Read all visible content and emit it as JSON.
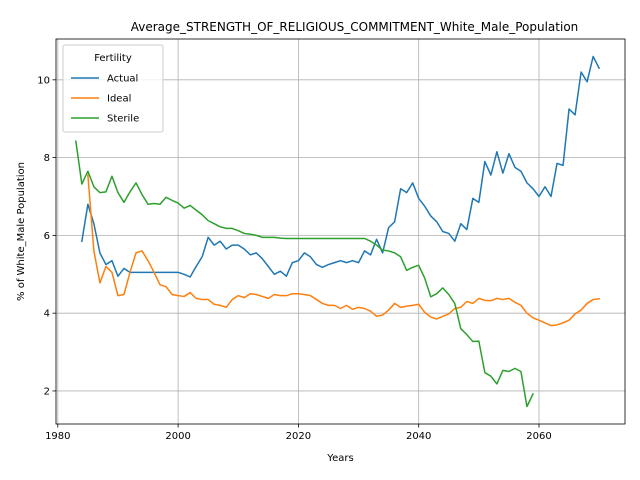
{
  "chart_data": {
    "type": "line",
    "title": "Average_STRENGTH_OF_RELIGIOUS_COMMITMENT_White_Male_Population",
    "xlabel": "Years",
    "ylabel": "% of White_Male Population",
    "xlim": [
      1979.7,
      2074.3
    ],
    "ylim": [
      1.15,
      11.05
    ],
    "xticks": [
      1980,
      2000,
      2020,
      2040,
      2060
    ],
    "yticks": [
      2,
      4,
      6,
      8,
      10
    ],
    "grid": true,
    "legend": {
      "title": "Fertility",
      "placement": "top-left"
    },
    "series": [
      {
        "name": "Actual",
        "color": "#1f77b4",
        "x": [
          1984,
          1985,
          1986,
          1987,
          1988,
          1989,
          1990,
          1991,
          1992,
          1993,
          1994,
          1995,
          1996,
          1997,
          1998,
          1999,
          2000,
          2001,
          2002,
          2003,
          2004,
          2005,
          2006,
          2007,
          2008,
          2009,
          2010,
          2011,
          2012,
          2013,
          2014,
          2015,
          2016,
          2017,
          2018,
          2019,
          2020,
          2021,
          2022,
          2023,
          2024,
          2025,
          2026,
          2027,
          2028,
          2029,
          2030,
          2031,
          2032,
          2033,
          2034,
          2035,
          2036,
          2037,
          2038,
          2039,
          2040,
          2041,
          2042,
          2043,
          2044,
          2045,
          2046,
          2047,
          2048,
          2049,
          2050,
          2051,
          2052,
          2053,
          2054,
          2055,
          2056,
          2057,
          2058,
          2059,
          2060,
          2061,
          2062,
          2063,
          2064,
          2065,
          2066,
          2067,
          2068,
          2069,
          2070
        ],
        "y": [
          5.85,
          6.8,
          6.3,
          5.55,
          5.25,
          5.35,
          4.95,
          5.15,
          5.05,
          5.05,
          5.05,
          5.05,
          5.05,
          5.05,
          5.05,
          5.05,
          5.05,
          5.0,
          4.93,
          5.2,
          5.45,
          5.95,
          5.75,
          5.85,
          5.65,
          5.75,
          5.75,
          5.65,
          5.5,
          5.55,
          5.4,
          5.2,
          5.0,
          5.08,
          4.95,
          5.3,
          5.35,
          5.55,
          5.45,
          5.25,
          5.18,
          5.25,
          5.3,
          5.35,
          5.3,
          5.35,
          5.3,
          5.6,
          5.5,
          5.9,
          5.55,
          6.2,
          6.35,
          7.2,
          7.1,
          7.35,
          6.95,
          6.75,
          6.5,
          6.35,
          6.1,
          6.05,
          5.85,
          6.3,
          6.15,
          6.95,
          6.85,
          7.9,
          7.55,
          8.15,
          7.6,
          8.1,
          7.75,
          7.65,
          7.35,
          7.2,
          7.0,
          7.25,
          7.0,
          7.85,
          7.8,
          9.25,
          9.1,
          10.2,
          9.95,
          10.6,
          10.3
        ]
      },
      {
        "name": "Ideal",
        "color": "#ff7f0e",
        "x": [
          1985,
          1986,
          1987,
          1988,
          1989,
          1990,
          1991,
          1992,
          1993,
          1994,
          1995,
          1996,
          1997,
          1998,
          1999,
          2000,
          2001,
          2002,
          2003,
          2004,
          2005,
          2006,
          2007,
          2008,
          2009,
          2010,
          2011,
          2012,
          2013,
          2014,
          2015,
          2016,
          2017,
          2018,
          2019,
          2020,
          2021,
          2022,
          2023,
          2024,
          2025,
          2026,
          2027,
          2028,
          2029,
          2030,
          2031,
          2032,
          2033,
          2034,
          2035,
          2036,
          2037,
          2038,
          2039,
          2040,
          2041,
          2042,
          2043,
          2044,
          2045,
          2046,
          2047,
          2048,
          2049,
          2050,
          2051,
          2052,
          2053,
          2054,
          2055,
          2056,
          2057,
          2058,
          2059,
          2060,
          2061,
          2062,
          2063,
          2064,
          2065,
          2066,
          2067,
          2068,
          2069,
          2070
        ],
        "y": [
          7.55,
          5.6,
          4.78,
          5.2,
          5.05,
          4.45,
          4.48,
          5.05,
          5.55,
          5.6,
          5.35,
          5.05,
          4.73,
          4.68,
          4.48,
          4.45,
          4.43,
          4.53,
          4.38,
          4.35,
          4.35,
          4.23,
          4.2,
          4.15,
          4.35,
          4.45,
          4.4,
          4.5,
          4.48,
          4.43,
          4.38,
          4.48,
          4.45,
          4.45,
          4.5,
          4.5,
          4.48,
          4.45,
          4.35,
          4.25,
          4.2,
          4.2,
          4.12,
          4.2,
          4.1,
          4.15,
          4.12,
          4.05,
          3.92,
          3.95,
          4.08,
          4.25,
          4.15,
          4.18,
          4.2,
          4.23,
          4.02,
          3.9,
          3.85,
          3.92,
          3.98,
          4.12,
          4.15,
          4.3,
          4.25,
          4.38,
          4.33,
          4.32,
          4.38,
          4.35,
          4.38,
          4.28,
          4.2,
          4.0,
          3.88,
          3.82,
          3.75,
          3.68,
          3.7,
          3.75,
          3.82,
          3.98,
          4.08,
          4.25,
          4.35,
          4.37
        ]
      },
      {
        "name": "Sterile",
        "color": "#2ca02c",
        "x": [
          1983,
          1984,
          1985,
          1986,
          1987,
          1988,
          1989,
          1990,
          1991,
          1992,
          1993,
          1994,
          1995,
          1996,
          1997,
          1998,
          1999,
          2000,
          2001,
          2002,
          2003,
          2004,
          2005,
          2006,
          2007,
          2008,
          2009,
          2010,
          2011,
          2012,
          2013,
          2014,
          2015,
          2016,
          2017,
          2018,
          2019,
          2020,
          2021,
          2022,
          2023,
          2024,
          2025,
          2026,
          2027,
          2028,
          2029,
          2030,
          2031,
          2032,
          2033,
          2034,
          2035,
          2036,
          2037,
          2038,
          2039,
          2040,
          2041,
          2042,
          2043,
          2044,
          2045,
          2046,
          2047,
          2048,
          2049,
          2050,
          2051,
          2052,
          2053,
          2054,
          2055,
          2056,
          2057,
          2058,
          2059
        ],
        "y": [
          8.42,
          7.32,
          7.65,
          7.25,
          7.1,
          7.12,
          7.52,
          7.1,
          6.85,
          7.12,
          7.35,
          7.05,
          6.8,
          6.82,
          6.8,
          6.98,
          6.9,
          6.83,
          6.7,
          6.77,
          6.65,
          6.53,
          6.38,
          6.3,
          6.22,
          6.18,
          6.18,
          6.12,
          6.05,
          6.03,
          6.0,
          5.95,
          5.95,
          5.95,
          5.93,
          5.92,
          5.92,
          5.92,
          5.92,
          5.92,
          5.92,
          5.92,
          5.92,
          5.92,
          5.92,
          5.92,
          5.92,
          5.92,
          5.92,
          5.85,
          5.75,
          5.62,
          5.6,
          5.55,
          5.45,
          5.1,
          5.18,
          5.23,
          4.9,
          4.42,
          4.5,
          4.65,
          4.48,
          4.25,
          3.6,
          3.45,
          3.27,
          3.28,
          2.47,
          2.38,
          2.18,
          2.53,
          2.5,
          2.58,
          2.5,
          1.6,
          1.92
        ]
      }
    ]
  }
}
